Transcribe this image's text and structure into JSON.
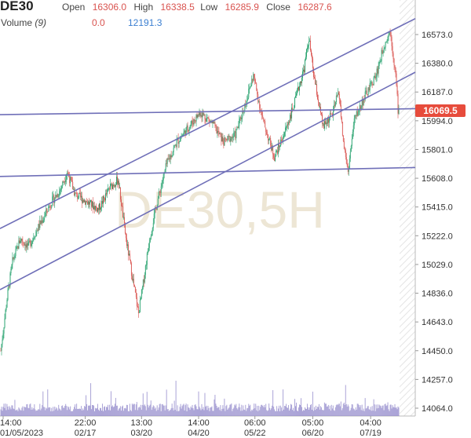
{
  "header": {
    "symbol": "DE30",
    "open_label": "Open",
    "open": "16306.0",
    "high_label": "High",
    "high": "16338.5",
    "low_label": "Low",
    "low": "16285.9",
    "close_label": "Close",
    "close": "16287.6",
    "volume_label": "Volume",
    "volume_period": "(9)",
    "volume_1": "0.0",
    "volume_2": "12191.3"
  },
  "watermark": "DE30,5H",
  "last_price": "16069.5",
  "colors": {
    "up": "#22a06b",
    "down": "#d9534f",
    "trendline": "#6f6fb8",
    "volume": "#8f86c9",
    "price_tag": "#e74c3c"
  },
  "chart_data": {
    "type": "candlestick",
    "y_ticks": [
      "16573.0",
      "16380.0",
      "16187.0",
      "15994.0",
      "15801.0",
      "15608.0",
      "15415.0",
      "15222.0",
      "15029.0",
      "14836.0",
      "14643.0",
      "14450.0",
      "14257.0",
      "14064.0"
    ],
    "ylim": [
      14000,
      16700
    ],
    "x_ticks": [
      {
        "time": "14:00",
        "date": "01/05/2023"
      },
      {
        "time": "22:00",
        "date": "02/17"
      },
      {
        "time": "13:00",
        "date": "03/20"
      },
      {
        "time": "14:00",
        "date": "04/20"
      },
      {
        "time": "06:00",
        "date": "05/22"
      },
      {
        "time": "05:00",
        "date": "06/20"
      },
      {
        "time": "04:00",
        "date": "07/19"
      }
    ],
    "x_tick_index": [
      3,
      108,
      180,
      253,
      325,
      399,
      473
    ],
    "bar_count": 510,
    "path": [
      [
        0,
        14450
      ],
      [
        8,
        14800
      ],
      [
        15,
        15050
      ],
      [
        25,
        15200
      ],
      [
        35,
        15150
      ],
      [
        50,
        15300
      ],
      [
        65,
        15450
      ],
      [
        75,
        15520
      ],
      [
        85,
        15650
      ],
      [
        95,
        15500
      ],
      [
        110,
        15450
      ],
      [
        125,
        15400
      ],
      [
        140,
        15550
      ],
      [
        150,
        15600
      ],
      [
        160,
        15200
      ],
      [
        168,
        14950
      ],
      [
        176,
        14700
      ],
      [
        182,
        14900
      ],
      [
        190,
        15200
      ],
      [
        200,
        15450
      ],
      [
        212,
        15700
      ],
      [
        225,
        15850
      ],
      [
        240,
        15950
      ],
      [
        255,
        16050
      ],
      [
        270,
        15980
      ],
      [
        285,
        15850
      ],
      [
        300,
        15900
      ],
      [
        315,
        16150
      ],
      [
        323,
        16300
      ],
      [
        335,
        16000
      ],
      [
        350,
        15750
      ],
      [
        362,
        15900
      ],
      [
        375,
        16100
      ],
      [
        388,
        16350
      ],
      [
        394,
        16550
      ],
      [
        400,
        16300
      ],
      [
        412,
        15950
      ],
      [
        425,
        16050
      ],
      [
        432,
        16200
      ],
      [
        438,
        15850
      ],
      [
        444,
        15650
      ],
      [
        452,
        16000
      ],
      [
        465,
        16150
      ],
      [
        480,
        16300
      ],
      [
        490,
        16500
      ],
      [
        498,
        16600
      ],
      [
        505,
        16300
      ],
      [
        508,
        16069.5
      ]
    ],
    "trendlines": [
      {
        "from": [
          0,
          15270
        ],
        "to": [
          530,
          16680
        ]
      },
      {
        "from": [
          0,
          14860
        ],
        "to": [
          530,
          16320
        ]
      },
      {
        "from": [
          0,
          16035
        ],
        "to": [
          530,
          16075
        ]
      },
      {
        "from": [
          0,
          15620
        ],
        "to": [
          530,
          15680
        ]
      }
    ]
  }
}
